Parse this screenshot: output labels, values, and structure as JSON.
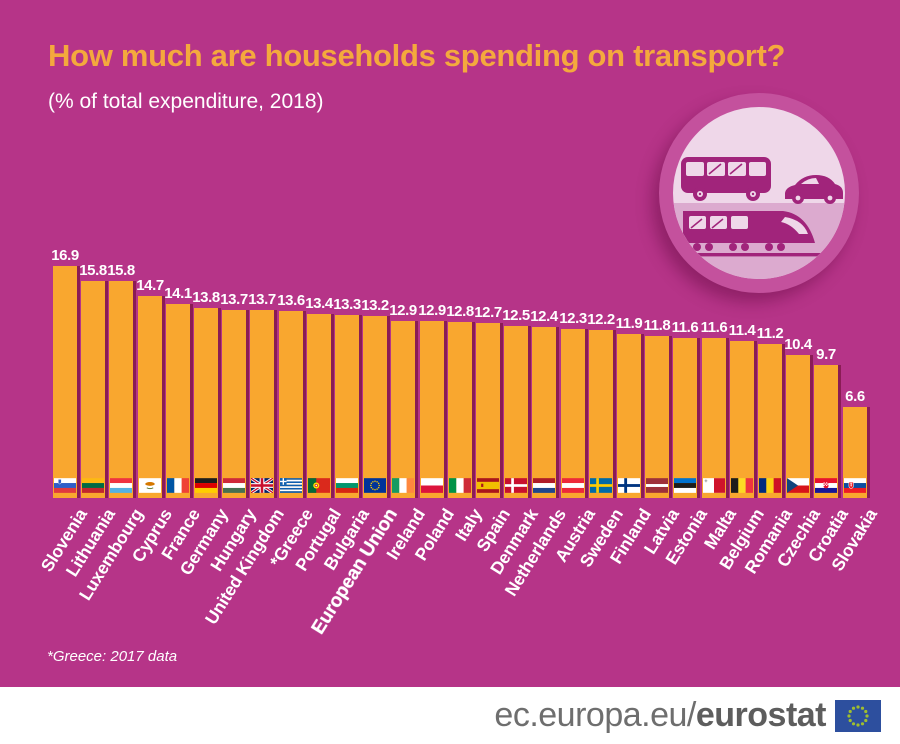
{
  "title": "How much are households spending on transport?",
  "subtitle": "(% of total expenditure, 2018)",
  "footnote": "*Greece: 2017 data",
  "footer": {
    "url_regular": "ec.europa.eu/",
    "url_bold": "eurostat"
  },
  "illustration": {
    "icons": [
      "bus-icon",
      "car-icon",
      "train-icon"
    ]
  },
  "colors": {
    "background": "#b63488",
    "bar": "#f9a72f",
    "bar_shadow": "#8a1c55",
    "title": "#f4a93d",
    "text": "#ffffff",
    "circle_ring": "#c4519d",
    "circle_fill": "#efd7e9",
    "circle_band": "#dcaacf",
    "vehicle": "#a1247b",
    "footer_bg": "#ffffff",
    "footer_text": "#6e6e6e",
    "eu_flag_blue": "#2d4f9e",
    "eu_flag_star": "#9fbe2f"
  },
  "chart_data": {
    "type": "bar",
    "title": "How much are households spending on transport?",
    "subtitle": "(% of total expenditure, 2018)",
    "ylabel": "% of total expenditure",
    "ylim": [
      0,
      17
    ],
    "grid": false,
    "legend": "none",
    "footnote": "*Greece: 2017 data",
    "emphasized_category": "European Union",
    "categories": [
      "Slovenia",
      "Lithuania",
      "Luxembourg",
      "Cyprus",
      "France",
      "Germany",
      "Hungary",
      "United Kingdom",
      "*Greece",
      "Portugal",
      "Bulgaria",
      "European Union",
      "Ireland",
      "Poland",
      "Italy",
      "Spain",
      "Denmark",
      "Netherlands",
      "Austria",
      "Sweden",
      "Finland",
      "Latvia",
      "Estonia",
      "Malta",
      "Belgium",
      "Romania",
      "Czechia",
      "Croatia",
      "Slovakia"
    ],
    "values": [
      16.9,
      15.8,
      15.8,
      14.7,
      14.1,
      13.8,
      13.7,
      13.7,
      13.6,
      13.4,
      13.3,
      13.2,
      12.9,
      12.9,
      12.8,
      12.7,
      12.5,
      12.4,
      12.3,
      12.2,
      11.9,
      11.8,
      11.6,
      11.6,
      11.4,
      11.2,
      10.4,
      9.7,
      6.6
    ],
    "flags": [
      "slovenia",
      "lithuania",
      "luxembourg",
      "cyprus",
      "france",
      "germany",
      "hungary",
      "united-kingdom",
      "greece",
      "portugal",
      "bulgaria",
      "eu",
      "ireland",
      "poland",
      "italy",
      "spain",
      "denmark",
      "netherlands",
      "austria",
      "sweden",
      "finland",
      "latvia",
      "estonia",
      "malta",
      "belgium",
      "romania",
      "czechia",
      "croatia",
      "slovakia"
    ]
  }
}
